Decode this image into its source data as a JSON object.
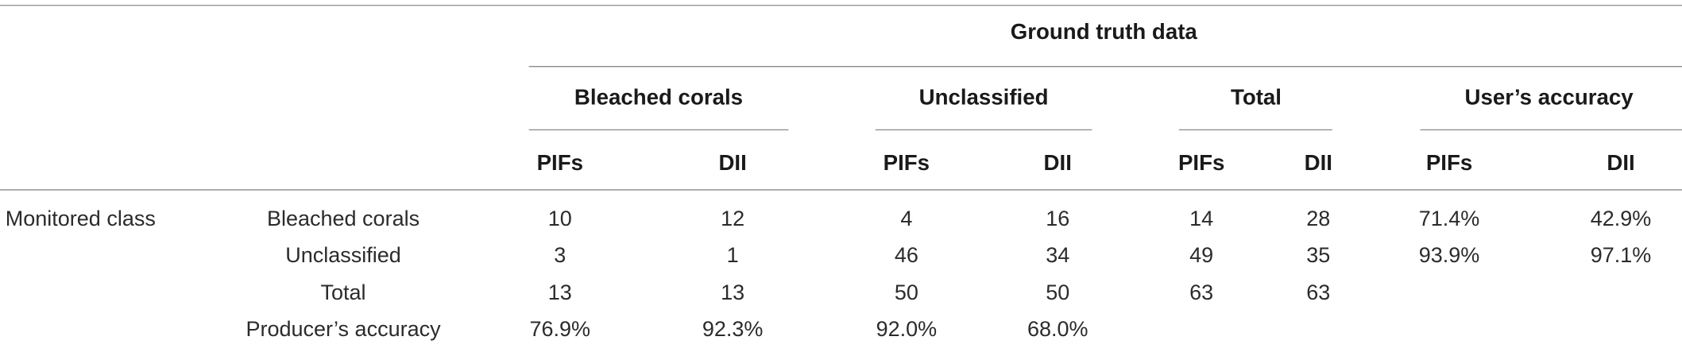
{
  "header": {
    "title": "Ground truth data",
    "groups": [
      "Bleached corals",
      "Unclassified",
      "Total",
      "User’s accuracy"
    ],
    "subheaders": [
      "PIFs",
      "DII",
      "PIFs",
      "DII",
      "PIFs",
      "DII",
      "PIFs",
      "DII"
    ]
  },
  "table": {
    "row_group": "Monitored class",
    "rows": [
      {
        "label": "Bleached corals",
        "cells": [
          10,
          12,
          4,
          16,
          14,
          28,
          "71.4%",
          "42.9%"
        ]
      },
      {
        "label": "Unclassified",
        "cells": [
          3,
          1,
          46,
          34,
          49,
          35,
          "93.9%",
          "97.1%"
        ]
      },
      {
        "label": "Total",
        "cells": [
          13,
          13,
          50,
          50,
          63,
          63
        ]
      },
      {
        "label": "Producer’s accuracy",
        "cells": [
          "76.9%",
          "92.3%",
          "92.0%",
          "68.0%"
        ]
      }
    ]
  }
}
